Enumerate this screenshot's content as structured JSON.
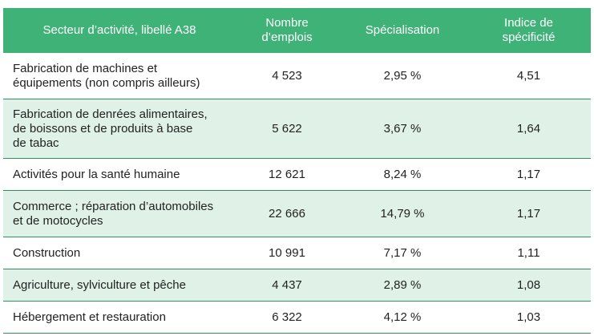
{
  "table": {
    "headers": [
      "Secteur d’activité, libellé A38",
      "Nombre\nd’emplois",
      "Spécialisation",
      "Indice de\nspécificité"
    ],
    "rows": [
      {
        "sector": "Fabrication de machines et\néquipements (non compris ailleurs)",
        "jobs": "4 523",
        "spec": "2,95 %",
        "index": "4,51"
      },
      {
        "sector": "Fabrication de denrées alimentaires,\nde boissons et de produits à base\nde tabac",
        "jobs": "5 622",
        "spec": "3,67 %",
        "index": "1,64"
      },
      {
        "sector": "Activités pour la santé humaine",
        "jobs": "12 621",
        "spec": "8,24 %",
        "index": "1,17"
      },
      {
        "sector": "Commerce ; réparation d’automobiles\net de motocycles",
        "jobs": "22 666",
        "spec": "14,79 %",
        "index": "1,17"
      },
      {
        "sector": "Construction",
        "jobs": "10 991",
        "spec": "7,17 %",
        "index": "1,11"
      },
      {
        "sector": "Agriculture, sylviculture et pêche",
        "jobs": "4 437",
        "spec": "2,89 %",
        "index": "1,08"
      },
      {
        "sector": "Hébergement et restauration",
        "jobs": "6 322",
        "spec": "4,12 %",
        "index": "1,03"
      }
    ]
  },
  "colors": {
    "header": "#3fb278",
    "stripe": "#e0f2e8",
    "rule": "#2f8f5e"
  }
}
